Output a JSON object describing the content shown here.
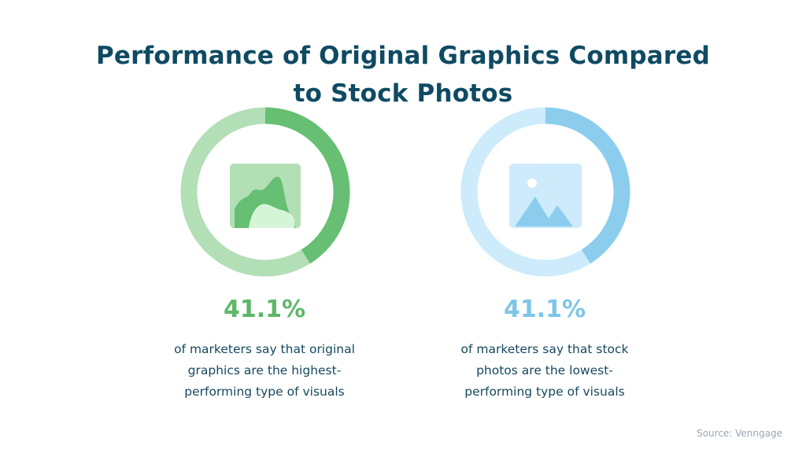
{
  "title": {
    "line1": "Performance of Original Graphics Compared",
    "line2": "to Stock Photos"
  },
  "chart_data": [
    {
      "type": "pie",
      "value_percent": 41.1,
      "label": "41.1%",
      "description_lines": [
        "of marketers say that original",
        "graphics are the highest-",
        "performing type of visuals"
      ],
      "colors": {
        "accent": "#66bf72",
        "track": "#b3dfb6",
        "text": "#5cb868"
      },
      "icon": "chart-image-icon"
    },
    {
      "type": "pie",
      "value_percent": 41.1,
      "label": "41.1%",
      "description_lines": [
        "of marketers say that stock",
        "photos are the lowest-",
        "performing type of visuals"
      ],
      "colors": {
        "accent": "#8ccdee",
        "track": "#cdebfb",
        "text": "#7cc6ea"
      },
      "icon": "photo-image-icon"
    }
  ],
  "source": "Source: Venngage"
}
